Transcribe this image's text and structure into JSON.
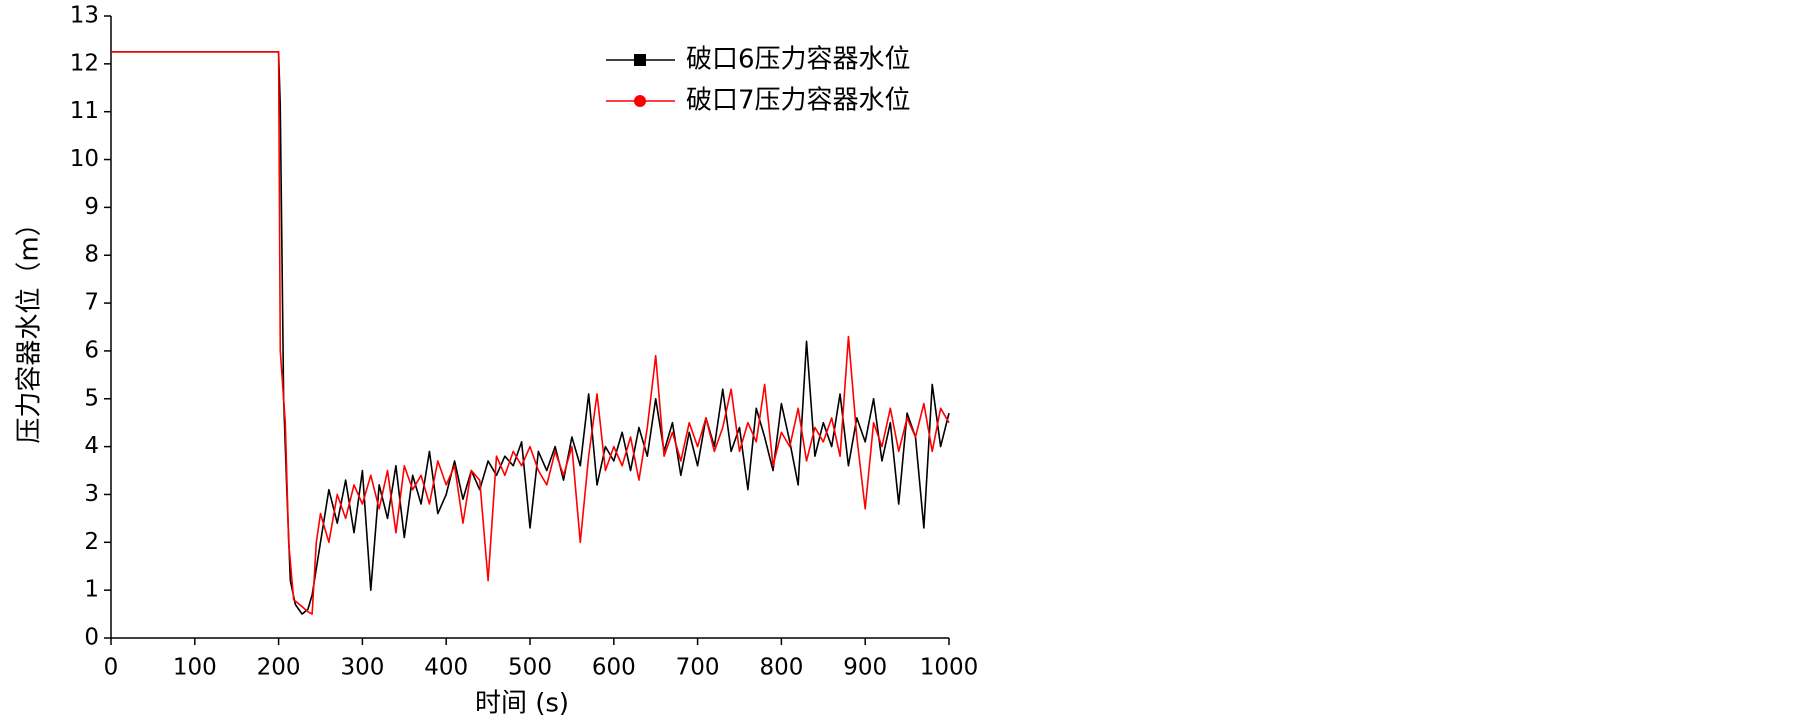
{
  "chart_data": {
    "type": "line",
    "xlabel": "时间 (s)",
    "ylabel": "压力容器水位（m）",
    "xlim": [
      0,
      1000
    ],
    "xticks": [
      0,
      100,
      200,
      300,
      400,
      500,
      600,
      700,
      800,
      900,
      1000
    ],
    "ylim": [
      0,
      13
    ],
    "yticks": [
      0,
      1,
      2,
      3,
      4,
      5,
      6,
      7,
      8,
      9,
      10,
      11,
      12,
      13
    ],
    "legend": "top-right",
    "series": [
      {
        "name": "破口6压力容器水位",
        "color": "#000000",
        "marker": "square",
        "x": [
          0,
          80,
          160,
          200,
          202,
          206,
          210,
          214,
          220,
          228,
          235,
          240,
          250,
          260,
          270,
          280,
          290,
          300,
          310,
          320,
          330,
          340,
          350,
          360,
          370,
          380,
          390,
          400,
          410,
          420,
          430,
          440,
          450,
          460,
          470,
          480,
          490,
          500,
          510,
          520,
          530,
          540,
          550,
          560,
          570,
          580,
          590,
          600,
          610,
          620,
          630,
          640,
          650,
          660,
          670,
          680,
          690,
          700,
          710,
          720,
          730,
          740,
          750,
          760,
          770,
          780,
          790,
          800,
          810,
          820,
          830,
          840,
          850,
          860,
          870,
          880,
          890,
          900,
          910,
          920,
          930,
          940,
          950,
          960,
          970,
          980,
          990,
          1000
        ],
        "values": [
          12.25,
          12.25,
          12.25,
          12.25,
          11.1,
          5.0,
          3.0,
          1.2,
          0.7,
          0.5,
          0.6,
          0.9,
          2.0,
          3.1,
          2.4,
          3.3,
          2.2,
          3.5,
          1.0,
          3.2,
          2.5,
          3.6,
          2.1,
          3.4,
          2.8,
          3.9,
          2.6,
          3.0,
          3.7,
          2.9,
          3.5,
          3.1,
          3.7,
          3.4,
          3.8,
          3.6,
          4.1,
          2.3,
          3.9,
          3.5,
          4.0,
          3.3,
          4.2,
          3.6,
          5.1,
          3.2,
          4.0,
          3.7,
          4.3,
          3.5,
          4.4,
          3.8,
          5.0,
          3.9,
          4.5,
          3.4,
          4.3,
          3.6,
          4.6,
          4.0,
          5.2,
          3.9,
          4.4,
          3.1,
          4.8,
          4.2,
          3.5,
          4.9,
          4.1,
          3.2,
          6.2,
          3.8,
          4.5,
          4.0,
          5.1,
          3.6,
          4.6,
          4.1,
          5.0,
          3.7,
          4.5,
          2.8,
          4.7,
          4.2,
          2.3,
          5.3,
          4.0,
          4.7
        ]
      },
      {
        "name": "破口7压力容器水位",
        "color": "#ff0000",
        "marker": "circle",
        "x": [
          0,
          80,
          160,
          200,
          202,
          204,
          208,
          212,
          218,
          225,
          235,
          240,
          245,
          250,
          260,
          270,
          280,
          290,
          300,
          310,
          320,
          330,
          340,
          350,
          360,
          370,
          380,
          390,
          400,
          410,
          420,
          430,
          440,
          450,
          460,
          470,
          480,
          490,
          500,
          510,
          520,
          530,
          540,
          550,
          560,
          570,
          580,
          590,
          600,
          610,
          620,
          630,
          640,
          650,
          660,
          670,
          680,
          690,
          700,
          710,
          720,
          730,
          740,
          750,
          760,
          770,
          780,
          790,
          800,
          810,
          820,
          830,
          840,
          850,
          860,
          870,
          880,
          890,
          900,
          910,
          920,
          930,
          940,
          950,
          960,
          970,
          980,
          990,
          1000
        ],
        "values": [
          12.25,
          12.25,
          12.25,
          12.25,
          6.0,
          5.5,
          4.5,
          2.0,
          0.8,
          0.7,
          0.55,
          0.5,
          2.0,
          2.6,
          2.0,
          3.0,
          2.5,
          3.2,
          2.8,
          3.4,
          2.7,
          3.5,
          2.2,
          3.6,
          3.1,
          3.4,
          2.8,
          3.7,
          3.2,
          3.6,
          2.4,
          3.5,
          3.3,
          1.2,
          3.8,
          3.4,
          3.9,
          3.6,
          4.0,
          3.5,
          3.2,
          3.9,
          3.4,
          4.0,
          2.0,
          3.8,
          5.1,
          3.5,
          4.0,
          3.6,
          4.2,
          3.3,
          4.4,
          5.9,
          3.8,
          4.3,
          3.7,
          4.5,
          4.0,
          4.6,
          3.9,
          4.4,
          5.2,
          3.9,
          4.5,
          4.1,
          5.3,
          3.6,
          4.3,
          4.0,
          4.8,
          3.7,
          4.4,
          4.1,
          4.6,
          3.8,
          6.3,
          4.2,
          2.7,
          4.5,
          4.0,
          4.8,
          3.9,
          4.6,
          4.2,
          4.9,
          3.9,
          4.8,
          4.5
        ]
      }
    ]
  }
}
